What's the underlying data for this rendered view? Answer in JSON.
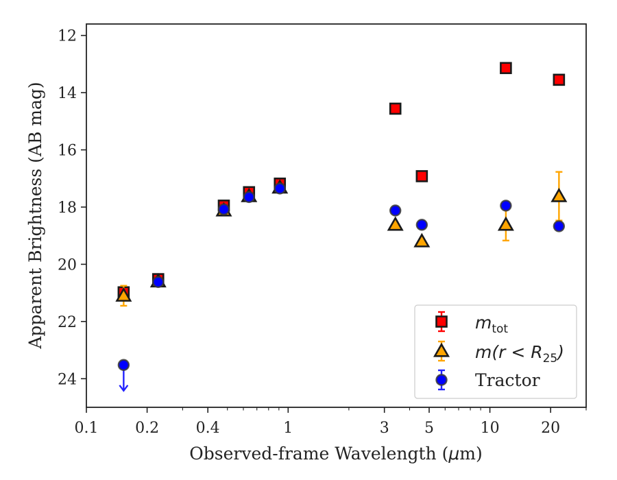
{
  "chart_data": {
    "type": "scatter",
    "xlabel_parts": [
      "Observed-frame Wavelength (",
      "μ",
      "m)"
    ],
    "ylabel": "Apparent Brightness (AB mag)",
    "x_scale": "log",
    "y_inverted": true,
    "xlim": [
      0.1,
      30
    ],
    "ylim": [
      25,
      11.6
    ],
    "x_ticks": [
      0.1,
      0.2,
      0.4,
      1,
      3,
      5,
      10,
      20
    ],
    "x_tick_labels": [
      "0.1",
      "0.2",
      "0.4",
      "1",
      "3",
      "5",
      "10",
      "20"
    ],
    "y_ticks": [
      12,
      14,
      16,
      18,
      20,
      22,
      24
    ],
    "y_tick_labels": [
      "12",
      "14",
      "16",
      "18",
      "20",
      "22",
      "24"
    ],
    "legend_position": "lower-right",
    "series": [
      {
        "key": "mtot",
        "legend_main": "m",
        "legend_sub": "tot",
        "marker": "square",
        "color": "#ff0000",
        "edge": "#1a1a1a",
        "error_color": "#ff0000",
        "points": [
          {
            "x": 0.153,
            "y": 20.98,
            "err": 0.12
          },
          {
            "x": 0.227,
            "y": 20.52,
            "err": 0.08
          },
          {
            "x": 0.48,
            "y": 17.95,
            "err": 0.05
          },
          {
            "x": 0.64,
            "y": 17.48,
            "err": 0.05
          },
          {
            "x": 0.91,
            "y": 17.18,
            "err": 0.05
          },
          {
            "x": 3.4,
            "y": 14.56,
            "err": 0
          },
          {
            "x": 4.6,
            "y": 16.92,
            "err": 0
          },
          {
            "x": 12.0,
            "y": 13.14,
            "err": 0
          },
          {
            "x": 22.0,
            "y": 13.55,
            "err": 0
          }
        ]
      },
      {
        "key": "mr25",
        "legend_prefix": "m(r < R",
        "legend_sub": "25",
        "legend_suffix": ")",
        "marker": "triangle",
        "color": "#ffa500",
        "edge": "#1a1a1a",
        "error_color": "#ffa500",
        "points": [
          {
            "x": 0.153,
            "y": 21.1,
            "err": 0.35
          },
          {
            "x": 0.227,
            "y": 20.6,
            "err": 0.08
          },
          {
            "x": 0.48,
            "y": 18.12,
            "err": 0.05
          },
          {
            "x": 0.64,
            "y": 17.62,
            "err": 0.05
          },
          {
            "x": 0.91,
            "y": 17.32,
            "err": 0.05
          },
          {
            "x": 3.4,
            "y": 18.62,
            "err": 0
          },
          {
            "x": 4.6,
            "y": 19.2,
            "err": 0
          },
          {
            "x": 12.0,
            "y": 18.62,
            "err": 0.55
          },
          {
            "x": 22.0,
            "y": 17.62,
            "err": 0.85
          }
        ]
      },
      {
        "key": "tractor",
        "legend_label": "Tractor",
        "marker": "circle",
        "color": "#0000ff",
        "edge": "#3a3a3a",
        "error_color": "#2222ff",
        "points": [
          {
            "x": 0.153,
            "y": 23.52,
            "err": 0,
            "upper_limit": true
          },
          {
            "x": 0.227,
            "y": 20.62,
            "err": 0.05
          },
          {
            "x": 0.48,
            "y": 18.08,
            "err": 0.05
          },
          {
            "x": 0.64,
            "y": 17.65,
            "err": 0.05
          },
          {
            "x": 0.91,
            "y": 17.35,
            "err": 0.05
          },
          {
            "x": 3.4,
            "y": 18.12,
            "err": 0.08
          },
          {
            "x": 4.6,
            "y": 18.62,
            "err": 0.08
          },
          {
            "x": 12.0,
            "y": 17.95,
            "err": 0.08
          },
          {
            "x": 22.0,
            "y": 18.67,
            "err": 0.08
          }
        ]
      }
    ]
  }
}
